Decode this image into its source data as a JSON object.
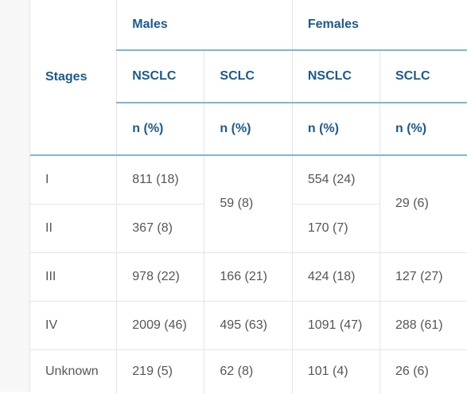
{
  "table": {
    "header": {
      "stages": "Stages",
      "males": "Males",
      "females": "Females",
      "nsclc": "NSCLC",
      "sclc": "SCLC",
      "unit": "n (%)"
    },
    "rows": [
      {
        "stage": "I",
        "m_nsclc": "811 (18)",
        "m_sclc": "59 (8)",
        "f_nsclc": "554 (24)",
        "f_sclc": "29 (6)"
      },
      {
        "stage": "II",
        "m_nsclc": "367 (8)",
        "f_nsclc": "170 (7)"
      },
      {
        "stage": "III",
        "m_nsclc": "978 (22)",
        "m_sclc": "166 (21)",
        "f_nsclc": "424 (18)",
        "f_sclc": "127 (27)"
      },
      {
        "stage": "IV",
        "m_nsclc": "2009 (46)",
        "m_sclc": "495 (63)",
        "f_nsclc": "1091 (47)",
        "f_sclc": "288 (61)"
      },
      {
        "stage": "Unknown",
        "m_nsclc": "219 (5)",
        "m_sclc": "62 (8)",
        "f_nsclc": "101 (4)",
        "f_sclc": "26 (6)"
      }
    ]
  }
}
